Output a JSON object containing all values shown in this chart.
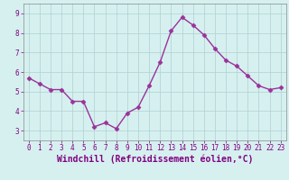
{
  "x": [
    0,
    1,
    2,
    3,
    4,
    5,
    6,
    7,
    8,
    9,
    10,
    11,
    12,
    13,
    14,
    15,
    16,
    17,
    18,
    19,
    20,
    21,
    22,
    23
  ],
  "y": [
    5.7,
    5.4,
    5.1,
    5.1,
    4.5,
    4.5,
    3.2,
    3.4,
    3.1,
    3.9,
    4.2,
    5.3,
    6.5,
    8.1,
    8.8,
    8.4,
    7.9,
    7.2,
    6.6,
    6.3,
    5.8,
    5.3,
    5.1,
    5.2
  ],
  "line_color": "#993399",
  "marker": "D",
  "markersize": 2.5,
  "linewidth": 1.0,
  "xlabel": "Windchill (Refroidissement éolien,°C)",
  "xlim": [
    -0.5,
    23.5
  ],
  "ylim": [
    2.5,
    9.5
  ],
  "yticks": [
    3,
    4,
    5,
    6,
    7,
    8,
    9
  ],
  "xticks": [
    0,
    1,
    2,
    3,
    4,
    5,
    6,
    7,
    8,
    9,
    10,
    11,
    12,
    13,
    14,
    15,
    16,
    17,
    18,
    19,
    20,
    21,
    22,
    23
  ],
  "tick_fontsize": 5.5,
  "xlabel_fontsize": 7,
  "grid_color": "#b0d0d0",
  "background_color": "#d6f0f0",
  "tick_color": "#800080",
  "xlabel_color": "#800080",
  "spine_color": "#888888"
}
